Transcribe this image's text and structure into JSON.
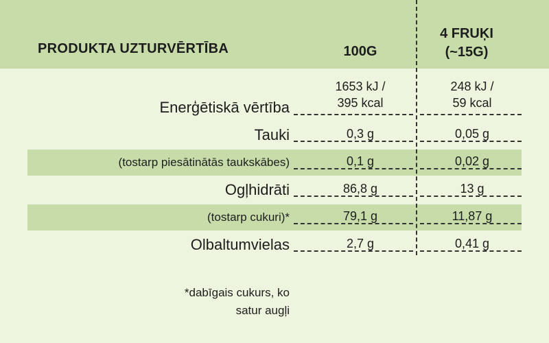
{
  "header": {
    "title": "PRODUKTA UZTURVĒRTĪBA",
    "col_100g": "100G",
    "col_4fruki_line1": "4 FRUĶI",
    "col_4fruki_line2": "(~15G)"
  },
  "rows": [
    {
      "label": "Enerģētiskā vērtība",
      "v100_line1": "1653 kJ /",
      "v100_line2": "395 kcal",
      "v4_line1": "248 kJ /",
      "v4_line2": "59 kcal"
    },
    {
      "label": "Tauki",
      "v100": "0,3 g",
      "v4": "0,05 g"
    },
    {
      "label": "(tostarp piesātinātās taukskābes)",
      "v100": "0,1 g",
      "v4": "0,02 g"
    },
    {
      "label": "Ogļhidrāti",
      "v100": "86,8 g",
      "v4": "13 g"
    },
    {
      "label": "(tostarp cukuri)*",
      "v100": "79,1 g",
      "v4": "11,87 g"
    },
    {
      "label": "Olbaltumvielas",
      "v100": "2,7 g",
      "v4": "0,41 g"
    }
  ],
  "footnote": {
    "line1": "*dabīgais cukurs, ko",
    "line2": "satur augļi"
  },
  "colors": {
    "header_bg": "#c8dcaa",
    "page_bg": "#eef5df",
    "highlight_bg": "#c8dcaa"
  }
}
